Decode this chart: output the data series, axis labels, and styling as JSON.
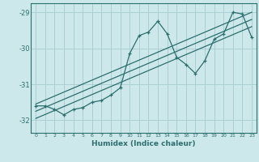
{
  "xlabel": "Humidex (Indice chaleur)",
  "bg_color": "#cde8ea",
  "grid_color": "#aacfd2",
  "line_color": "#2d6e6e",
  "xlim": [
    -0.5,
    23.5
  ],
  "ylim": [
    -32.35,
    -28.75
  ],
  "yticks": [
    -32,
    -31,
    -30,
    -29
  ],
  "xticks": [
    0,
    1,
    2,
    3,
    4,
    5,
    6,
    7,
    8,
    9,
    10,
    11,
    12,
    13,
    14,
    15,
    16,
    17,
    18,
    19,
    20,
    21,
    22,
    23
  ],
  "data_x": [
    0,
    1,
    2,
    3,
    4,
    5,
    6,
    7,
    8,
    9,
    10,
    11,
    12,
    13,
    14,
    15,
    16,
    17,
    18,
    19,
    20,
    21,
    22,
    23
  ],
  "data_y": [
    -31.6,
    -31.6,
    -31.7,
    -31.85,
    -31.7,
    -31.65,
    -31.5,
    -31.45,
    -31.3,
    -31.1,
    -30.15,
    -29.65,
    -29.55,
    -29.25,
    -29.6,
    -30.25,
    -30.45,
    -30.7,
    -30.35,
    -29.75,
    -29.6,
    -29.0,
    -29.05,
    -29.7
  ],
  "line1_x": [
    0,
    23
  ],
  "line1_y": [
    -31.95,
    -29.4
  ],
  "line2_x": [
    0,
    23
  ],
  "line2_y": [
    -31.75,
    -29.2
  ],
  "line3_x": [
    0,
    23
  ],
  "line3_y": [
    -31.55,
    -29.0
  ]
}
